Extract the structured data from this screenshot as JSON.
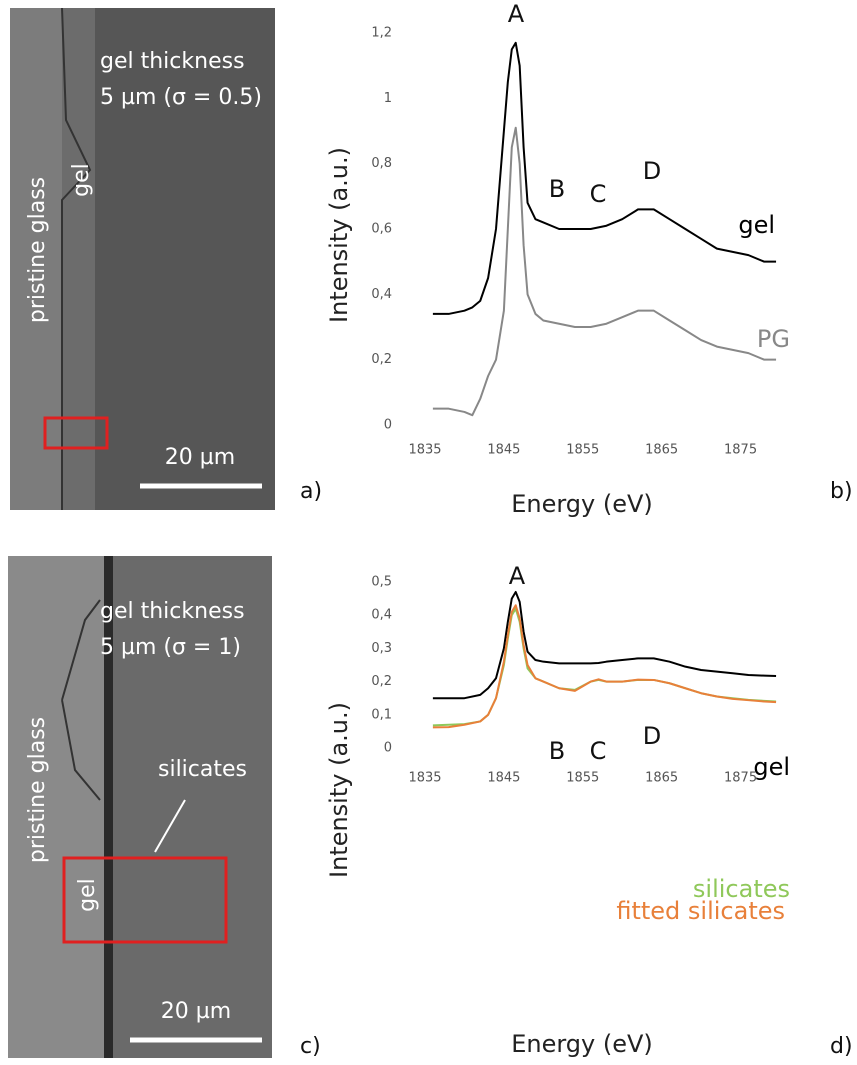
{
  "micrographs": [
    {
      "panel_label": "a)",
      "labels": [
        "gel thickness",
        "5 µm (σ = 0.5)",
        "pristine glass",
        "gel"
      ],
      "scale_bar": "20 µm"
    },
    {
      "panel_label": "c)",
      "labels": [
        "gel thickness",
        "5 µm (σ = 1)",
        "pristine glass",
        "gel",
        "silicates"
      ],
      "scale_bar": "20 µm"
    }
  ],
  "chart_data": [
    {
      "type": "line",
      "panel_label": "b)",
      "x_label": "Energy (eV)",
      "y_label": "Intensity (a.u.)",
      "annotations": [
        "A",
        "B",
        "C",
        "D"
      ],
      "x": [
        1836,
        1838,
        1840,
        1841,
        1842,
        1843,
        1844,
        1845,
        1845.5,
        1846,
        1846.5,
        1847,
        1847.5,
        1848,
        1849,
        1850,
        1852,
        1854,
        1856,
        1858,
        1860,
        1862,
        1864,
        1866,
        1868,
        1870,
        1872,
        1874,
        1876,
        1878,
        1879.5
      ],
      "series": [
        {
          "name": "gel",
          "color": "#000000",
          "values": [
            0.34,
            0.34,
            0.35,
            0.36,
            0.38,
            0.45,
            0.6,
            0.9,
            1.05,
            1.15,
            1.17,
            1.1,
            0.85,
            0.68,
            0.63,
            0.62,
            0.6,
            0.6,
            0.6,
            0.61,
            0.63,
            0.66,
            0.66,
            0.63,
            0.6,
            0.57,
            0.54,
            0.53,
            0.52,
            0.5,
            0.5
          ]
        },
        {
          "name": "PG",
          "color": "#888888",
          "values": [
            0.05,
            0.05,
            0.04,
            0.03,
            0.08,
            0.15,
            0.2,
            0.35,
            0.6,
            0.85,
            0.91,
            0.8,
            0.55,
            0.4,
            0.34,
            0.32,
            0.31,
            0.3,
            0.3,
            0.31,
            0.33,
            0.35,
            0.35,
            0.32,
            0.29,
            0.26,
            0.24,
            0.23,
            0.22,
            0.2,
            0.2
          ]
        }
      ],
      "xlim": [
        1835,
        1880
      ],
      "xticks": [
        1835,
        1845,
        1855,
        1865,
        1875
      ],
      "ylim": [
        0,
        1.2
      ],
      "yticks": [
        0,
        {
          "value": 0.2,
          "label": "0,2"
        },
        {
          "value": 0.4,
          "label": "0,4"
        },
        {
          "value": 0.6,
          "label": "0,6"
        },
        {
          "value": 0.8,
          "label": "0,8"
        },
        1,
        {
          "value": 1.2,
          "label": "1,2"
        }
      ]
    },
    {
      "type": "line",
      "panel_label": "d)",
      "x_label": "Energy (eV)",
      "y_label": "Intensity (a.u.)",
      "annotations": [
        "A",
        "B",
        "C",
        "D"
      ],
      "x": [
        1836,
        1838,
        1840,
        1842,
        1843,
        1844,
        1845,
        1845.5,
        1846,
        1846.5,
        1847,
        1847.5,
        1848,
        1849,
        1850,
        1852,
        1854,
        1856,
        1857,
        1858,
        1860,
        1862,
        1864,
        1866,
        1868,
        1870,
        1872,
        1874,
        1876,
        1878,
        1879.5
      ],
      "series": [
        {
          "name": "gel",
          "color": "#000000",
          "values": [
            0.15,
            0.15,
            0.15,
            0.16,
            0.18,
            0.21,
            0.3,
            0.38,
            0.45,
            0.47,
            0.44,
            0.35,
            0.29,
            0.265,
            0.26,
            0.255,
            0.255,
            0.255,
            0.256,
            0.26,
            0.265,
            0.27,
            0.27,
            0.26,
            0.245,
            0.235,
            0.23,
            0.225,
            0.22,
            0.218,
            0.217
          ]
        },
        {
          "name": "silicates",
          "color": "#8fc85a",
          "values": [
            0.068,
            0.07,
            0.072,
            0.08,
            0.1,
            0.15,
            0.25,
            0.33,
            0.4,
            0.42,
            0.38,
            0.3,
            0.24,
            0.21,
            0.2,
            0.18,
            0.175,
            0.2,
            0.205,
            0.2,
            0.2,
            0.205,
            0.205,
            0.195,
            0.18,
            0.165,
            0.155,
            0.15,
            0.145,
            0.142,
            0.14
          ]
        },
        {
          "name": "fitted silicates",
          "color": "#e8803a",
          "values": [
            0.062,
            0.063,
            0.07,
            0.08,
            0.1,
            0.15,
            0.26,
            0.34,
            0.41,
            0.43,
            0.39,
            0.31,
            0.25,
            0.21,
            0.2,
            0.18,
            0.172,
            0.2,
            0.207,
            0.2,
            0.2,
            0.206,
            0.205,
            0.195,
            0.18,
            0.165,
            0.155,
            0.148,
            0.144,
            0.14,
            0.138
          ]
        }
      ],
      "xlim": [
        1835,
        1880
      ],
      "xticks": [
        1835,
        1845,
        1855,
        1865,
        1875
      ],
      "ylim": [
        0,
        0.5
      ],
      "yticks": [
        0,
        {
          "value": 0.1,
          "label": "0,1"
        },
        {
          "value": 0.2,
          "label": "0,2"
        },
        {
          "value": 0.3,
          "label": "0,3"
        },
        {
          "value": 0.4,
          "label": "0,4"
        },
        {
          "value": 0.5,
          "label": "0,5"
        }
      ]
    }
  ]
}
